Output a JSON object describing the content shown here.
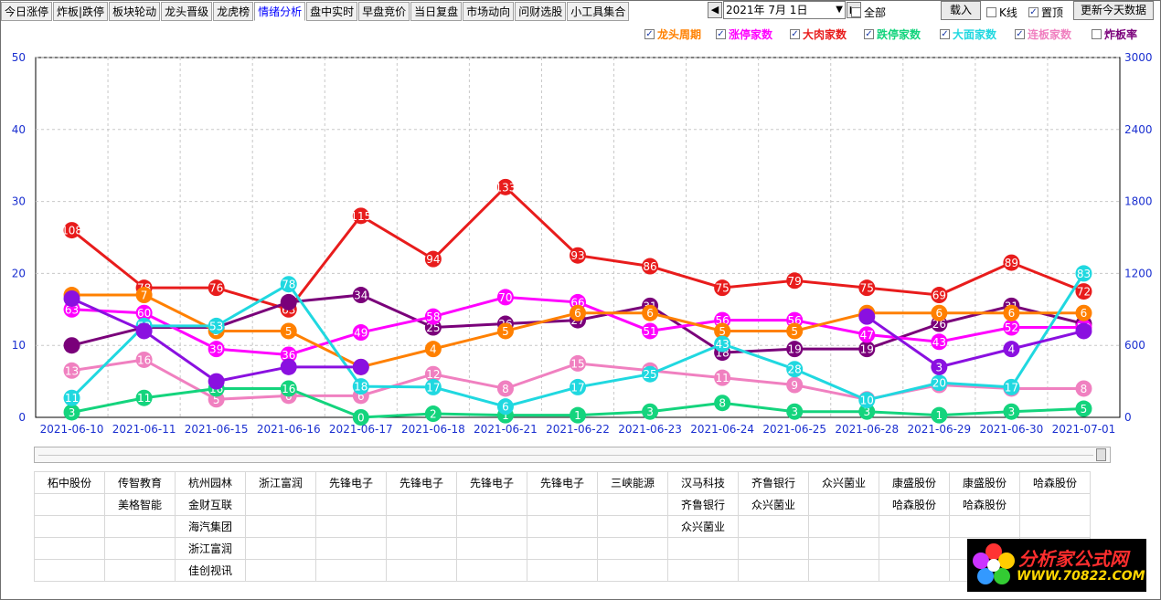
{
  "tabs": [
    "今日涨停",
    "炸板|跌停",
    "板块轮动",
    "龙头晋级",
    "龙虎榜",
    "情绪分析",
    "盘中实时",
    "早盘竞价",
    "当日复盘",
    "市场动向",
    "问财选股",
    "小工具集合"
  ],
  "active_tab": 5,
  "date": {
    "prev_icon": "chevron-left-icon",
    "value": "2021年 7月 1日",
    "next_icon": "chevron-right-icon"
  },
  "toolbar": {
    "all_label": "全部",
    "all_checked": false,
    "load_label": "载入",
    "kline_label": "K线",
    "kline_checked": false,
    "top_label": "置顶",
    "top_checked": true,
    "update_label": "更新今天数据"
  },
  "legend": [
    {
      "label": "龙头周期",
      "color": "#ff8000",
      "checked": true
    },
    {
      "label": "涨停家数",
      "color": "#ff00ff",
      "checked": true
    },
    {
      "label": "大肉家数",
      "color": "#e81c1c",
      "checked": true
    },
    {
      "label": "跌停家数",
      "color": "#14d47d",
      "checked": true
    },
    {
      "label": "大面家数",
      "color": "#20d8e0",
      "checked": true
    },
    {
      "label": "连板家数",
      "color": "#f080c0",
      "checked": true
    },
    {
      "label": "炸板率",
      "color": "#7a007a",
      "checked": false
    }
  ],
  "chart_data": {
    "type": "line",
    "x": [
      "2021-06-10",
      "2021-06-11",
      "2021-06-15",
      "2021-06-16",
      "2021-06-17",
      "2021-06-18",
      "2021-06-21",
      "2021-06-22",
      "2021-06-23",
      "2021-06-24",
      "2021-06-25",
      "2021-06-28",
      "2021-06-29",
      "2021-06-30",
      "2021-07-01"
    ],
    "ylim_left": [
      0,
      50
    ],
    "ylim_right": [
      0,
      3000
    ],
    "yticks_left": [
      "0",
      "10",
      "20",
      "30",
      "40",
      "50"
    ],
    "yticks_right": [
      "0",
      "600",
      "1200",
      "1800",
      "2400",
      "3000"
    ],
    "grid": true,
    "series": [
      {
        "name": "大肉家数",
        "color": "#e81c1c",
        "axis": "left",
        "y": [
          26,
          18,
          18,
          15,
          28,
          22,
          32,
          22.5,
          21,
          18,
          19,
          18,
          17,
          21.5,
          17.5
        ],
        "labels": [
          "108",
          "78",
          "76",
          "63",
          "115",
          "94",
          "133",
          "93",
          "86",
          "75",
          "79",
          "75",
          "69",
          "89",
          "72"
        ]
      },
      {
        "name": "炸板率",
        "color": "#7a007a",
        "axis": "left",
        "y": [
          10,
          12.5,
          12.5,
          16,
          17,
          12.5,
          13,
          13.5,
          15.5,
          9,
          9.5,
          9.5,
          13,
          15.5,
          13
        ],
        "labels": [
          "",
          "",
          "",
          "",
          "34",
          "25",
          "26",
          "27",
          "31",
          "18",
          "19",
          "19",
          "26",
          "31",
          ""
        ]
      },
      {
        "name": "涨停家数",
        "color": "#ff00ff",
        "axis": "left",
        "y": [
          15,
          14.5,
          9.5,
          8.7,
          11.8,
          14,
          16.7,
          16,
          12,
          13.5,
          13.5,
          11.5,
          10.5,
          12.5,
          12.5
        ],
        "labels": [
          "63",
          "60",
          "39",
          "36",
          "49",
          "58",
          "70",
          "66",
          "51",
          "56",
          "56",
          "47",
          "43",
          "52",
          "52"
        ]
      },
      {
        "name": "龙头周期",
        "color": "#ff8000",
        "axis": "left",
        "y": [
          17,
          17,
          12,
          12,
          7,
          9.5,
          12,
          14.5,
          14.5,
          12,
          12,
          14.5,
          14.5,
          14.5,
          14.5
        ],
        "labels": [
          "7",
          "7",
          "5",
          "5",
          "3",
          "4",
          "5",
          "6",
          "6",
          "5",
          "5",
          "6",
          "6",
          "6",
          "6"
        ]
      },
      {
        "name": "连板家数",
        "color": "#f080c0",
        "axis": "left",
        "y": [
          6.5,
          8,
          2.5,
          3,
          3,
          6,
          4,
          7.5,
          6.5,
          5.5,
          4.5,
          2.5,
          4.5,
          4,
          4
        ],
        "labels": [
          "13",
          "16",
          "5",
          "6",
          "6",
          "12",
          "8",
          "15",
          "13",
          "11",
          "9",
          "5",
          "9",
          "8",
          "8"
        ]
      },
      {
        "name": "跌停家数",
        "color": "#14d47d",
        "axis": "left",
        "y": [
          0.7,
          2.7,
          4,
          4,
          0,
          0.5,
          0.3,
          0.3,
          0.8,
          2,
          0.8,
          0.8,
          0.3,
          0.8,
          1.2
        ],
        "labels": [
          "3",
          "11",
          "16",
          "16",
          "0",
          "2",
          "1",
          "1",
          "3",
          "8",
          "3",
          "3",
          "1",
          "3",
          "5"
        ]
      },
      {
        "name": "大面家数",
        "color": "#20d8e0",
        "axis": "left",
        "y": [
          2.7,
          12.7,
          12.7,
          18.5,
          4.3,
          4.2,
          1.5,
          4.2,
          6,
          10.2,
          6.7,
          2.4,
          4.8,
          4.2,
          20
        ],
        "labels": [
          "11",
          "53",
          "53",
          "78",
          "18",
          "17",
          "6",
          "17",
          "25",
          "43",
          "28",
          "10",
          "20",
          "17",
          "83"
        ]
      },
      {
        "name": "连板晋级",
        "color": "#8a10e0",
        "axis": "left",
        "y": [
          16.5,
          12,
          5,
          7,
          7,
          null,
          null,
          null,
          null,
          null,
          null,
          null,
          null,
          null,
          null
        ],
        "labels": [
          "",
          "",
          "",
          "",
          "",
          "",
          "",
          "",
          "",
          "",
          "",
          "",
          "",
          "",
          ""
        ]
      },
      {
        "name": "连板晋级2",
        "color": "#8a10e0",
        "axis": "left",
        "y": [
          null,
          null,
          null,
          null,
          null,
          null,
          null,
          null,
          null,
          null,
          null,
          14,
          7,
          9.5,
          12
        ],
        "labels": [
          "",
          "",
          "",
          "",
          "",
          "",
          "",
          "",
          "",
          "",
          "",
          "",
          "3",
          "4",
          ""
        ]
      }
    ]
  },
  "stock_grid": [
    [
      "柘中股份",
      "传智教育",
      "杭州园林",
      "浙江富润",
      "先锋电子",
      "先锋电子",
      "先锋电子",
      "先锋电子",
      "三峡能源",
      "汉马科技",
      "齐鲁银行",
      "众兴菌业",
      "康盛股份",
      "康盛股份",
      "哈森股份"
    ],
    [
      "",
      "美格智能",
      "金财互联",
      "",
      "",
      "",
      "",
      "",
      "",
      "齐鲁银行",
      "众兴菌业",
      "",
      "哈森股份",
      "哈森股份",
      ""
    ],
    [
      "",
      "",
      "海汽集团",
      "",
      "",
      "",
      "",
      "",
      "",
      "众兴菌业",
      "",
      "",
      "",
      "",
      ""
    ],
    [
      "",
      "",
      "浙江富润",
      "",
      "",
      "",
      "",
      "",
      "",
      "",
      "",
      "",
      "",
      "",
      ""
    ],
    [
      "",
      "",
      "佳创视讯",
      "",
      "",
      "",
      "",
      "",
      "",
      "",
      "",
      "",
      "",
      "",
      ""
    ]
  ],
  "logo": {
    "line1": "分析家公式网",
    "line2": "WWW.70822.COM",
    "icon": "flower-logo-icon"
  }
}
